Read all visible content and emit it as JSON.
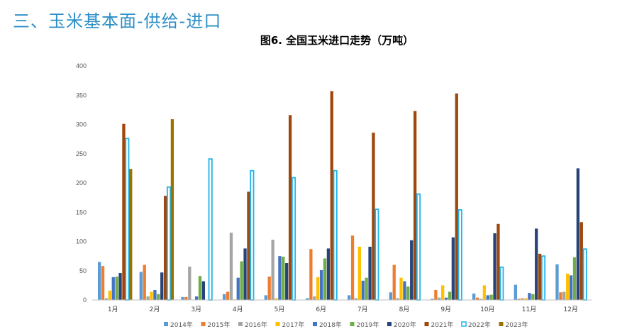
{
  "page": {
    "section_title": "三、玉米基本面-供给-进口"
  },
  "chart_data": {
    "type": "bar",
    "title": "图6. 全国玉米进口走势（万吨）",
    "categories": [
      "1月",
      "2月",
      "3月",
      "4月",
      "5月",
      "6月",
      "7月",
      "8月",
      "9月",
      "10月",
      "11月",
      "12月"
    ],
    "ylim": [
      0,
      400
    ],
    "yticks": [
      0,
      50,
      100,
      150,
      200,
      250,
      300,
      350,
      400
    ],
    "grid": false,
    "legend_position": "bottom",
    "series": [
      {
        "name": "2014年",
        "color": "#5b9bd5",
        "values": [
          65,
          48,
          5,
          10,
          8,
          3,
          8,
          13,
          2,
          11,
          26,
          61
        ]
      },
      {
        "name": "2015年",
        "color": "#ed7d31",
        "values": [
          58,
          60,
          5,
          14,
          40,
          87,
          110,
          60,
          17,
          4,
          2,
          13
        ]
      },
      {
        "name": "2016年",
        "color": "#a5a5a5",
        "values": [
          3,
          6,
          57,
          115,
          103,
          6,
          3,
          3,
          4,
          2,
          3,
          14
        ]
      },
      {
        "name": "2017年",
        "color": "#ffc000",
        "values": [
          16,
          14,
          0,
          1,
          3,
          39,
          91,
          38,
          25,
          25,
          3,
          45
        ]
      },
      {
        "name": "2018年",
        "color": "#4472c4",
        "values": [
          39,
          17,
          6,
          38,
          75,
          51,
          33,
          32,
          4,
          8,
          12,
          42
        ]
      },
      {
        "name": "2019年",
        "color": "#70ad47",
        "values": [
          40,
          10,
          41,
          66,
          74,
          71,
          38,
          23,
          14,
          9,
          10,
          73
        ]
      },
      {
        "name": "2020年",
        "color": "#264478",
        "values": [
          46,
          47,
          32,
          88,
          63,
          88,
          91,
          102,
          107,
          114,
          122,
          225
        ]
      },
      {
        "name": "2021年",
        "color": "#9e480e",
        "values": [
          301,
          178,
          0,
          185,
          316,
          357,
          286,
          323,
          353,
          130,
          79,
          133
        ]
      },
      {
        "name": "2022年",
        "color": "#1fb3e8",
        "outlined": true,
        "values": [
          276,
          193,
          241,
          221,
          209,
          221,
          155,
          181,
          154,
          56,
          75,
          87
        ]
      },
      {
        "name": "2023年",
        "color": "#997300",
        "values": [
          224,
          309,
          null,
          null,
          null,
          null,
          null,
          null,
          null,
          null,
          null,
          null
        ]
      }
    ]
  }
}
